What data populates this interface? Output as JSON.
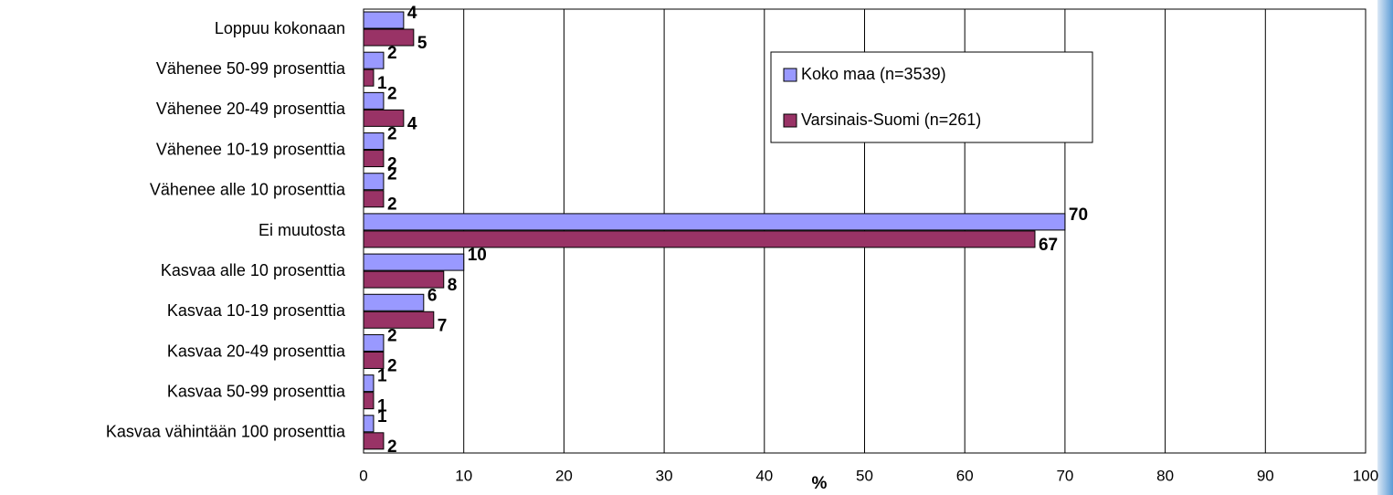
{
  "chart_data": {
    "type": "bar",
    "orientation": "horizontal",
    "categories": [
      "Loppuu kokonaan",
      "Vähenee 50-99 prosenttia",
      "Vähenee 20-49 prosenttia",
      "Vähenee 10-19 prosenttia",
      "Vähenee alle 10 prosenttia",
      "Ei muutosta",
      "Kasvaa alle 10 prosenttia",
      "Kasvaa 10-19 prosenttia",
      "Kasvaa 20-49 prosenttia",
      "Kasvaa 50-99 prosenttia",
      "Kasvaa vähintään 100 prosenttia"
    ],
    "series": [
      {
        "name": "Koko maa (n=3539)",
        "color": "#9999ff",
        "values": [
          4,
          2,
          2,
          2,
          2,
          70,
          10,
          6,
          2,
          1,
          1
        ]
      },
      {
        "name": "Varsinais-Suomi (n=261)",
        "color": "#993366",
        "values": [
          5,
          1,
          4,
          2,
          2,
          67,
          8,
          7,
          2,
          1,
          2
        ]
      }
    ],
    "x_label": "%",
    "xlim": [
      0,
      100
    ],
    "xticks": [
      0,
      10,
      20,
      30,
      40,
      50,
      60,
      70,
      80,
      90,
      100
    ],
    "grid": true,
    "legend": "upper right"
  }
}
